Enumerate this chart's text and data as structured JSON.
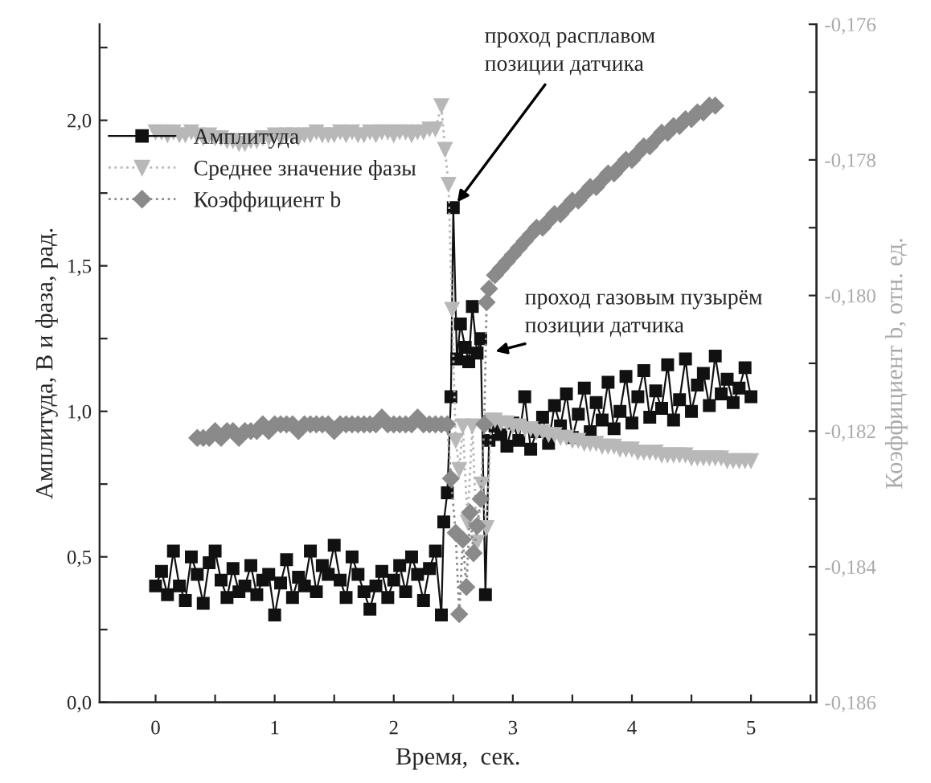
{
  "chart_data": {
    "type": "line",
    "xlabel": "Время,  сек.",
    "ylabel": "Амплитуда, В и фаза, рад.",
    "y2label": "Коэффициент b, отн. ед.",
    "xlim": [
      -0.47,
      5.55
    ],
    "ylim": [
      0,
      2.33
    ],
    "y2lim": [
      -0.186,
      -0.176
    ],
    "xticks": [
      0,
      {
        "value": 0.5,
        "label": null
      },
      1,
      {
        "value": 1.5,
        "label": null
      },
      2,
      {
        "value": 2.5,
        "label": null
      },
      3,
      {
        "value": 3.5,
        "label": null
      },
      4,
      {
        "value": 4.5,
        "label": null
      },
      5,
      {
        "value": 5.5,
        "label": null
      }
    ],
    "yticks": [
      {
        "value": 0,
        "label": "0,0"
      },
      {
        "value": 0.25,
        "label": null
      },
      {
        "value": 0.5,
        "label": "0,5"
      },
      {
        "value": 0.75,
        "label": null
      },
      {
        "value": 1.0,
        "label": "1,0"
      },
      {
        "value": 1.25,
        "label": null
      },
      {
        "value": 1.5,
        "label": "1,5"
      },
      {
        "value": 1.75,
        "label": null
      },
      {
        "value": 2.0,
        "label": "2,0"
      },
      {
        "value": 2.25,
        "label": null
      }
    ],
    "y2ticks": [
      {
        "value": -0.186,
        "label": "-0,186"
      },
      {
        "value": -0.185,
        "label": null
      },
      {
        "value": -0.184,
        "label": "-0,184"
      },
      {
        "value": -0.183,
        "label": null
      },
      {
        "value": -0.182,
        "label": "-0,182"
      },
      {
        "value": -0.181,
        "label": null
      },
      {
        "value": -0.18,
        "label": "-0,180"
      },
      {
        "value": -0.179,
        "label": null
      },
      {
        "value": -0.178,
        "label": "-0,178"
      },
      {
        "value": -0.177,
        "label": null
      },
      {
        "value": -0.176,
        "label": "-0,176"
      }
    ],
    "grid": false,
    "legend": "top left",
    "series": [
      {
        "name": "Амплитуда",
        "color": "#111111",
        "marker": "square",
        "line_style": "solid",
        "x": [
          0,
          0.05,
          0.1,
          0.15,
          0.2,
          0.25,
          0.3,
          0.35,
          0.4,
          0.45,
          0.5,
          0.55,
          0.6,
          0.65,
          0.7,
          0.75,
          0.8,
          0.85,
          0.9,
          0.95,
          1.0,
          1.05,
          1.1,
          1.15,
          1.2,
          1.25,
          1.3,
          1.35,
          1.4,
          1.45,
          1.5,
          1.55,
          1.6,
          1.65,
          1.7,
          1.75,
          1.8,
          1.85,
          1.9,
          1.95,
          2.0,
          2.05,
          2.1,
          2.15,
          2.2,
          2.25,
          2.3,
          2.35,
          2.4,
          2.42,
          2.45,
          2.48,
          2.5,
          2.53,
          2.56,
          2.6,
          2.63,
          2.66,
          2.7,
          2.73,
          2.77,
          2.8,
          2.85,
          2.9,
          2.95,
          3.0,
          3.05,
          3.1,
          3.15,
          3.2,
          3.25,
          3.3,
          3.35,
          3.4,
          3.45,
          3.5,
          3.55,
          3.6,
          3.65,
          3.7,
          3.75,
          3.8,
          3.85,
          3.9,
          3.95,
          4.0,
          4.05,
          4.1,
          4.15,
          4.2,
          4.25,
          4.3,
          4.35,
          4.4,
          4.45,
          4.5,
          4.55,
          4.6,
          4.65,
          4.7,
          4.75,
          4.8,
          4.85,
          4.9,
          4.95,
          5.0
        ],
        "values": [
          0.4,
          0.45,
          0.37,
          0.52,
          0.4,
          0.35,
          0.5,
          0.44,
          0.34,
          0.48,
          0.52,
          0.42,
          0.36,
          0.46,
          0.38,
          0.4,
          0.47,
          0.37,
          0.42,
          0.44,
          0.3,
          0.41,
          0.49,
          0.36,
          0.43,
          0.4,
          0.52,
          0.38,
          0.47,
          0.44,
          0.54,
          0.42,
          0.36,
          0.5,
          0.44,
          0.38,
          0.32,
          0.4,
          0.45,
          0.36,
          0.42,
          0.47,
          0.38,
          0.5,
          0.44,
          0.35,
          0.46,
          0.52,
          0.3,
          0.62,
          0.72,
          1.05,
          1.7,
          1.18,
          1.3,
          1.22,
          1.17,
          1.36,
          1.2,
          1.25,
          0.37,
          0.9,
          0.95,
          0.92,
          0.88,
          0.96,
          0.9,
          1.05,
          0.87,
          0.93,
          0.98,
          0.89,
          1.02,
          0.95,
          1.06,
          0.91,
          0.99,
          1.08,
          0.93,
          1.03,
          0.97,
          1.1,
          0.94,
          1.0,
          1.12,
          0.96,
          1.05,
          1.14,
          0.98,
          1.07,
          1.01,
          1.16,
          0.97,
          1.04,
          1.18,
          1.0,
          1.09,
          1.13,
          1.02,
          1.19,
          1.06,
          1.11,
          1.03,
          1.08,
          1.15,
          1.05
        ]
      },
      {
        "name": "Среднее значение фазы",
        "color": "#b8b8b8",
        "marker": "triangle",
        "line_style": "dotted",
        "x": [
          0,
          0.05,
          0.1,
          0.15,
          0.2,
          0.25,
          0.3,
          0.35,
          0.4,
          0.45,
          0.5,
          0.55,
          0.6,
          0.65,
          0.7,
          0.75,
          0.8,
          0.85,
          0.9,
          0.95,
          1.0,
          1.05,
          1.1,
          1.15,
          1.2,
          1.25,
          1.3,
          1.35,
          1.4,
          1.45,
          1.5,
          1.55,
          1.6,
          1.65,
          1.7,
          1.75,
          1.8,
          1.85,
          1.9,
          1.95,
          2.0,
          2.05,
          2.1,
          2.15,
          2.2,
          2.25,
          2.3,
          2.35,
          2.4,
          2.43,
          2.46,
          2.49,
          2.52,
          2.55,
          2.58,
          2.62,
          2.66,
          2.7,
          2.74,
          2.78,
          2.82,
          2.85,
          2.9,
          2.95,
          3.0,
          3.05,
          3.1,
          3.15,
          3.2,
          3.25,
          3.3,
          3.35,
          3.4,
          3.45,
          3.5,
          3.55,
          3.6,
          3.65,
          3.7,
          3.75,
          3.8,
          3.85,
          3.9,
          3.95,
          4.0,
          4.05,
          4.1,
          4.15,
          4.2,
          4.25,
          4.3,
          4.35,
          4.4,
          4.45,
          4.5,
          4.55,
          4.6,
          4.65,
          4.7,
          4.75,
          4.8,
          4.85,
          4.9,
          4.95,
          5.0
        ],
        "values": [
          1.96,
          1.96,
          1.95,
          1.96,
          1.95,
          1.95,
          1.96,
          1.95,
          1.94,
          1.95,
          1.94,
          1.94,
          1.93,
          1.93,
          1.92,
          1.92,
          1.93,
          1.93,
          1.94,
          1.94,
          1.95,
          1.94,
          1.95,
          1.95,
          1.94,
          1.95,
          1.95,
          1.96,
          1.95,
          1.95,
          1.95,
          1.96,
          1.95,
          1.96,
          1.95,
          1.95,
          1.96,
          1.95,
          1.96,
          1.96,
          1.95,
          1.96,
          1.96,
          1.95,
          1.96,
          1.96,
          1.97,
          1.97,
          2.05,
          1.9,
          1.78,
          1.35,
          0.9,
          0.8,
          0.95,
          0.62,
          0.95,
          0.55,
          0.75,
          0.6,
          0.97,
          0.97,
          0.96,
          0.96,
          0.95,
          0.95,
          0.94,
          0.94,
          0.93,
          0.93,
          0.92,
          0.92,
          0.91,
          0.91,
          0.9,
          0.9,
          0.89,
          0.89,
          0.89,
          0.88,
          0.88,
          0.88,
          0.87,
          0.87,
          0.87,
          0.86,
          0.86,
          0.86,
          0.86,
          0.85,
          0.85,
          0.85,
          0.85,
          0.85,
          0.84,
          0.84,
          0.84,
          0.84,
          0.84,
          0.84,
          0.83,
          0.83,
          0.83,
          0.83,
          0.83
        ]
      },
      {
        "name": "Коэффициент b",
        "color": "#8a8a8a",
        "marker": "diamond",
        "line_style": "dotted",
        "axis": "y2",
        "x": [
          0.35,
          0.4,
          0.45,
          0.5,
          0.55,
          0.6,
          0.65,
          0.7,
          0.75,
          0.8,
          0.85,
          0.9,
          0.95,
          1.0,
          1.05,
          1.1,
          1.15,
          1.2,
          1.25,
          1.3,
          1.35,
          1.4,
          1.45,
          1.5,
          1.55,
          1.6,
          1.65,
          1.7,
          1.75,
          1.8,
          1.85,
          1.9,
          1.95,
          2.0,
          2.05,
          2.1,
          2.15,
          2.2,
          2.25,
          2.3,
          2.35,
          2.4,
          2.45,
          2.48,
          2.52,
          2.55,
          2.58,
          2.61,
          2.64,
          2.67,
          2.7,
          2.73,
          2.76,
          2.78,
          2.8,
          2.85,
          2.9,
          2.95,
          3.0,
          3.05,
          3.1,
          3.15,
          3.2,
          3.25,
          3.3,
          3.35,
          3.4,
          3.45,
          3.5,
          3.55,
          3.6,
          3.65,
          3.7,
          3.75,
          3.8,
          3.85,
          3.9,
          3.95,
          4.0,
          4.05,
          4.1,
          4.15,
          4.2,
          4.25,
          4.3,
          4.35,
          4.4,
          4.45,
          4.5,
          4.55,
          4.6,
          4.65,
          4.7
        ],
        "values": [
          -0.1821,
          -0.1821,
          -0.1821,
          -0.182,
          -0.1821,
          -0.182,
          -0.182,
          -0.1821,
          -0.182,
          -0.182,
          -0.182,
          -0.1819,
          -0.182,
          -0.1819,
          -0.1819,
          -0.1819,
          -0.1819,
          -0.182,
          -0.1819,
          -0.1819,
          -0.1819,
          -0.1819,
          -0.1819,
          -0.182,
          -0.1819,
          -0.1819,
          -0.1819,
          -0.1819,
          -0.1819,
          -0.1819,
          -0.1819,
          -0.1818,
          -0.1819,
          -0.1819,
          -0.1819,
          -0.1819,
          -0.1819,
          -0.1818,
          -0.1819,
          -0.1819,
          -0.1819,
          -0.1819,
          -0.1819,
          -0.1827,
          -0.1835,
          -0.1847,
          -0.1836,
          -0.1843,
          -0.1832,
          -0.1838,
          -0.1834,
          -0.183,
          -0.1819,
          -0.1801,
          -0.1799,
          -0.1797,
          -0.1796,
          -0.1795,
          -0.1794,
          -0.1793,
          -0.1792,
          -0.1791,
          -0.179,
          -0.179,
          -0.1789,
          -0.1788,
          -0.1788,
          -0.1787,
          -0.1786,
          -0.1786,
          -0.1785,
          -0.1784,
          -0.1784,
          -0.1783,
          -0.1782,
          -0.1782,
          -0.1781,
          -0.178,
          -0.178,
          -0.1779,
          -0.1778,
          -0.1778,
          -0.1777,
          -0.1776,
          -0.1776,
          -0.1775,
          -0.1775,
          -0.1774,
          -0.1774,
          -0.1773,
          -0.1773,
          -0.1772,
          -0.1772
        ]
      }
    ],
    "annotations": [
      {
        "text": "проход расплавом\nпозиции датчика",
        "x": 2.5,
        "y": 1.7
      },
      {
        "text": "проход газовым пузырём\nпозиции датчика",
        "x": 2.8,
        "y": 1.2
      }
    ]
  }
}
